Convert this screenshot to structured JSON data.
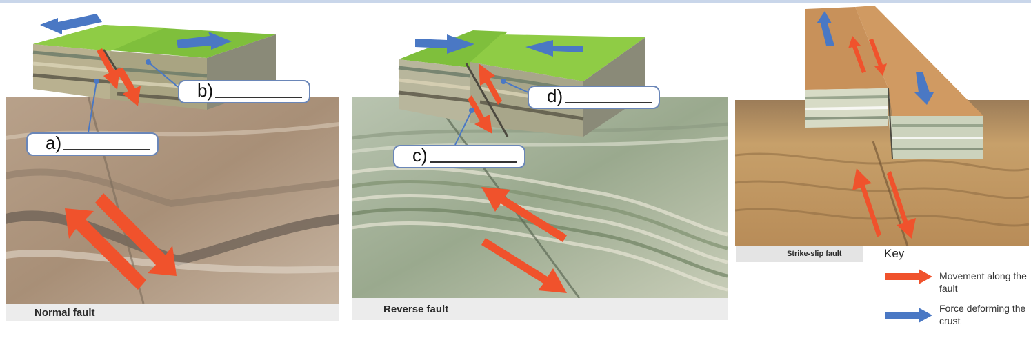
{
  "panels": {
    "normal": {
      "caption": "Normal fault"
    },
    "reverse": {
      "caption": "Reverse fault"
    },
    "strike": {
      "caption": "Strike-slip fault"
    }
  },
  "labels": {
    "a": "a)",
    "b": "b)",
    "c": "c)",
    "d": "d)"
  },
  "key": {
    "title": "Key",
    "movement": "Movement along the fault",
    "force": "Force deforming the crust",
    "movement_color": "#f0522c",
    "force_color": "#4a78c4"
  }
}
